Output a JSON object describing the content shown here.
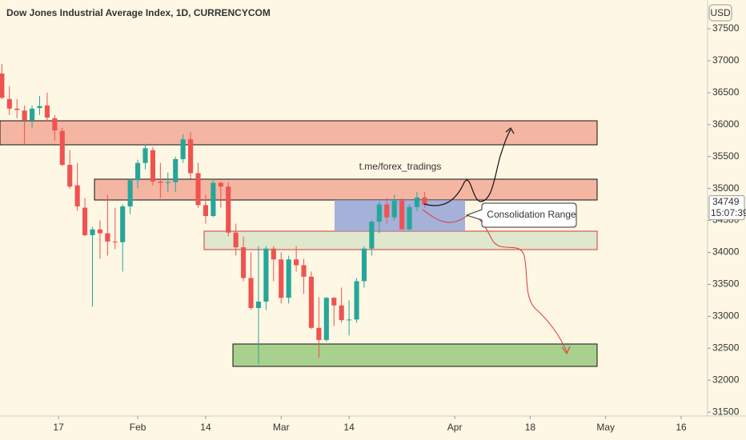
{
  "chart_data": {
    "type": "candlestick",
    "title": "Dow Jones Industrial Average Index, 1D, CURRENCYCOM",
    "currency": "USD",
    "open": [
      36800,
      36400,
      36250,
      36220,
      36070,
      36260,
      36300,
      36100,
      35900,
      35370,
      35050,
      34700,
      34270,
      34360,
      34300,
      34170,
      34160,
      34720,
      35130,
      35400,
      35600,
      35110,
      35090,
      35100,
      35460,
      35770,
      35240,
      34740,
      34570,
      35090,
      35030,
      34310,
      34080,
      33600,
      33130,
      33230,
      34060,
      33890,
      33290,
      33890,
      33800,
      33620,
      32820,
      32630,
      33290,
      33170,
      32940,
      32950,
      33550,
      34060,
      34480,
      34750,
      34550,
      34810,
      34360,
      34710,
      34860
    ],
    "high": [
      36950,
      36600,
      36400,
      36300,
      36300,
      36450,
      36500,
      36150,
      35950,
      35600,
      35400,
      34850,
      34400,
      34500,
      34900,
      34700,
      34750,
      35150,
      35450,
      35700,
      35650,
      35400,
      35250,
      35500,
      35850,
      35880,
      35400,
      34900,
      35150,
      35100,
      35100,
      34450,
      34250,
      34000,
      34100,
      34100,
      34100,
      34000,
      33950,
      34100,
      33900,
      33700,
      33300,
      33300,
      33300,
      33450,
      33250,
      33600,
      34100,
      34500,
      34800,
      34850,
      34900,
      34850,
      34750,
      34950,
      34950
    ],
    "low": [
      36400,
      36150,
      36100,
      35700,
      35950,
      36150,
      36050,
      35750,
      35350,
      35000,
      34650,
      34250,
      33150,
      33900,
      33950,
      34050,
      33700,
      34600,
      35000,
      35300,
      35050,
      34850,
      34950,
      34950,
      35400,
      35150,
      34700,
      34450,
      34550,
      34700,
      34250,
      33950,
      33550,
      33100,
      32250,
      33100,
      33550,
      33200,
      33200,
      33700,
      33350,
      32800,
      32350,
      32600,
      32850,
      32900,
      32700,
      32900,
      33450,
      33950,
      34300,
      34450,
      34500,
      34350,
      34350,
      34650,
      34700
    ],
    "close": [
      36420,
      36250,
      36230,
      36070,
      36250,
      36290,
      36110,
      35910,
      35370,
      35030,
      34720,
      34270,
      34360,
      34300,
      34170,
      34160,
      34720,
      35130,
      35400,
      35630,
      35110,
      35090,
      35100,
      35460,
      35770,
      35240,
      34740,
      34570,
      35090,
      35030,
      34310,
      34080,
      33600,
      33130,
      33230,
      34060,
      33890,
      33290,
      33890,
      33800,
      33620,
      32820,
      32630,
      33290,
      33170,
      32940,
      32950,
      33550,
      34060,
      34480,
      34750,
      34550,
      34810,
      34360,
      34710,
      34860,
      34749
    ],
    "up_color": "#26a69a",
    "down_color": "#ef5350",
    "xlim": [
      -0.25,
      93.5
    ],
    "xticks": [
      {
        "value": 7.5,
        "label": "17"
      },
      {
        "value": 18,
        "label": "Feb"
      },
      {
        "value": 27,
        "label": "14"
      },
      {
        "value": 37,
        "label": "Mar"
      },
      {
        "value": 46,
        "label": "14"
      },
      {
        "value": 60,
        "label": "Apr"
      },
      {
        "value": 70,
        "label": "18"
      },
      {
        "value": 80,
        "label": "May"
      },
      {
        "value": 90,
        "label": "16"
      }
    ],
    "ylim": [
      31440,
      37950
    ],
    "yticks": [
      31500,
      32000,
      32500,
      33000,
      33500,
      34000,
      34500,
      35000,
      35500,
      36000,
      36500,
      37000,
      37500
    ],
    "last_price": 34749,
    "countdown": "15:07:39",
    "annotations": [
      "t.me/forex_tradings",
      "Consolidation Range"
    ]
  }
}
